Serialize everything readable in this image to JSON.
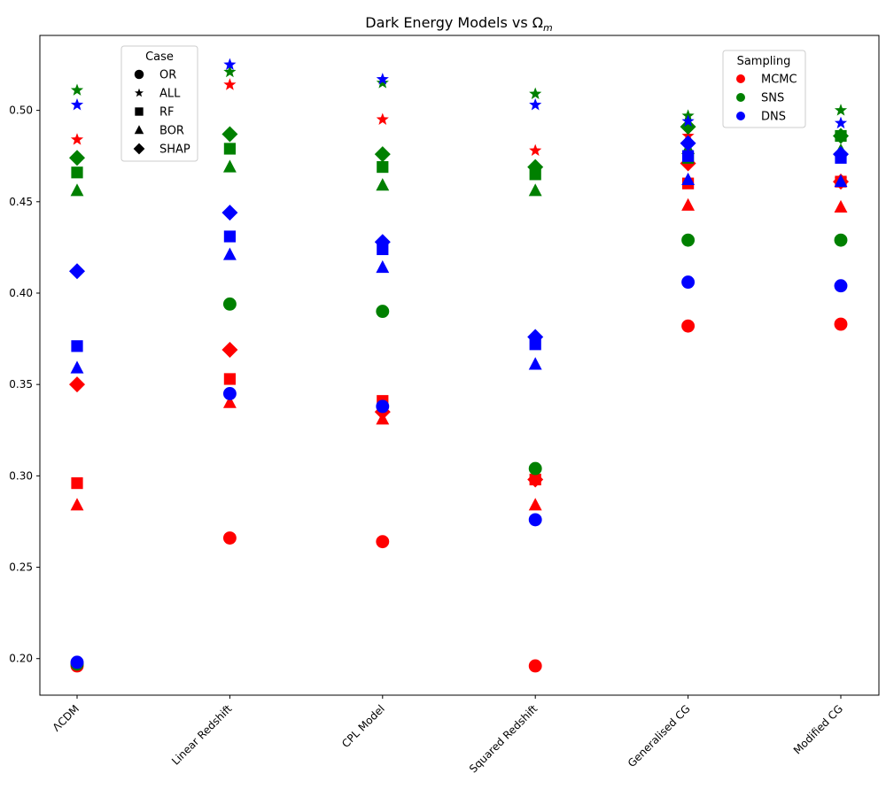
{
  "chart_data": {
    "type": "scatter",
    "title": "Dark Energy Models vs Ω",
    "title_subscript": "m",
    "xlabel": "",
    "ylabel": "",
    "ylim": [
      0.18,
      0.541
    ],
    "yticks": [
      "0.20",
      "0.25",
      "0.30",
      "0.35",
      "0.40",
      "0.45",
      "0.50"
    ],
    "categories": [
      "ΛCDM",
      "Linear Redshift",
      "CPL Model",
      "Squared Redshift",
      "Generalised CG",
      "Modified CG"
    ],
    "cases": [
      {
        "name": "OR",
        "marker": "circle"
      },
      {
        "name": "ALL",
        "marker": "star"
      },
      {
        "name": "RF",
        "marker": "square"
      },
      {
        "name": "BOR",
        "marker": "triangle"
      },
      {
        "name": "SHAP",
        "marker": "diamond"
      }
    ],
    "sampling": [
      {
        "name": "MCMC",
        "color": "#ff0000"
      },
      {
        "name": "SNS",
        "color": "#008000"
      },
      {
        "name": "DNS",
        "color": "#0000ff"
      }
    ],
    "legend_case_title": "Case",
    "legend_sampling_title": "Sampling",
    "series": [
      {
        "sampling": "MCMC",
        "case": "OR",
        "values": [
          0.196,
          0.266,
          0.264,
          0.196,
          0.382,
          0.383
        ]
      },
      {
        "sampling": "MCMC",
        "case": "ALL",
        "values": [
          0.484,
          0.514,
          0.495,
          0.478,
          0.486,
          0.462
        ]
      },
      {
        "sampling": "MCMC",
        "case": "RF",
        "values": [
          0.296,
          0.353,
          0.341,
          0.298,
          0.46,
          0.461
        ]
      },
      {
        "sampling": "MCMC",
        "case": "BOR",
        "values": [
          0.284,
          0.34,
          0.331,
          0.284,
          0.448,
          0.447
        ]
      },
      {
        "sampling": "MCMC",
        "case": "SHAP",
        "values": [
          0.35,
          0.369,
          0.335,
          0.298,
          0.471,
          0.461
        ]
      },
      {
        "sampling": "SNS",
        "case": "OR",
        "values": [
          0.197,
          0.394,
          0.39,
          0.304,
          0.429,
          0.429
        ]
      },
      {
        "sampling": "SNS",
        "case": "ALL",
        "values": [
          0.511,
          0.521,
          0.515,
          0.509,
          0.497,
          0.5
        ]
      },
      {
        "sampling": "SNS",
        "case": "RF",
        "values": [
          0.466,
          0.479,
          0.469,
          0.465,
          0.474,
          0.486
        ]
      },
      {
        "sampling": "SNS",
        "case": "BOR",
        "values": [
          0.456,
          0.469,
          0.459,
          0.456,
          0.479,
          0.478
        ]
      },
      {
        "sampling": "SNS",
        "case": "SHAP",
        "values": [
          0.474,
          0.487,
          0.476,
          0.469,
          0.491,
          0.486
        ]
      },
      {
        "sampling": "DNS",
        "case": "OR",
        "values": [
          0.198,
          0.345,
          0.338,
          0.276,
          0.406,
          0.404
        ]
      },
      {
        "sampling": "DNS",
        "case": "ALL",
        "values": [
          0.503,
          0.525,
          0.517,
          0.503,
          0.494,
          0.493
        ]
      },
      {
        "sampling": "DNS",
        "case": "RF",
        "values": [
          0.371,
          0.431,
          0.424,
          0.372,
          0.475,
          0.474
        ]
      },
      {
        "sampling": "DNS",
        "case": "BOR",
        "values": [
          0.359,
          0.421,
          0.414,
          0.361,
          0.462,
          0.461
        ]
      },
      {
        "sampling": "DNS",
        "case": "SHAP",
        "values": [
          0.412,
          0.444,
          0.428,
          0.376,
          0.482,
          0.476
        ]
      }
    ]
  }
}
